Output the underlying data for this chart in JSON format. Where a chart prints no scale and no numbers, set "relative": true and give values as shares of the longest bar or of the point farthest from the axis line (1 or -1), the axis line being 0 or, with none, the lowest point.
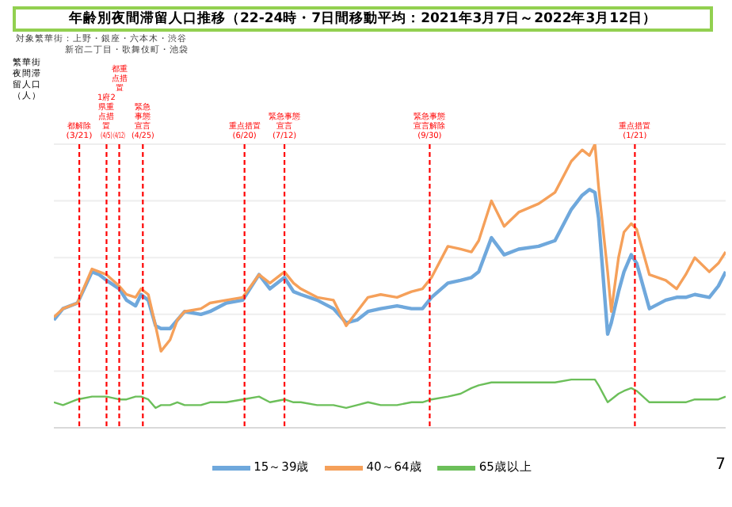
{
  "chart_data": {
    "type": "line",
    "title": "年齢別夜間滞留人口推移（22-24時・7日間移動平均：2021年3月7日～2022年3月12日）",
    "ylabel": "繁華街夜間滞留人口（人）",
    "annotations": [
      "対象繁華街：上野・銀座・六本木・渋谷",
      "新宿二丁目・歌舞伎町・池袋",
      "7"
    ],
    "relative": true,
    "grid": "y",
    "legend": "bottom",
    "marker": "none",
    "line_style": "solid",
    "xlim": [
      "2021-03-07",
      "2022-03-12"
    ],
    "xticks": [
      {
        "value": "2021-03-21",
        "label": "(3/21)"
      },
      {
        "value": "2021-04-05",
        "label": "(4/5)"
      },
      {
        "value": "2021-04-12",
        "label": "(4/12)"
      },
      {
        "value": "2021-04-25",
        "label": "(4/25)"
      },
      {
        "value": "2021-06-20",
        "label": "(6/20)"
      },
      {
        "value": "2021-07-12",
        "label": "(7/12)"
      },
      {
        "value": "2021-09-30",
        "label": "(9/30)"
      },
      {
        "value": "2022-01-21",
        "label": "(1/21)"
      }
    ],
    "x": [
      "2021-03-07",
      "2021-03-12",
      "2021-03-20",
      "2021-03-28",
      "2021-04-01",
      "2021-04-05",
      "2021-04-12",
      "2021-04-16",
      "2021-04-21",
      "2021-04-24",
      "2021-04-28",
      "2021-05-02",
      "2021-05-05",
      "2021-05-10",
      "2021-05-14",
      "2021-05-18",
      "2021-05-27",
      "2021-06-01",
      "2021-06-10",
      "2021-06-19",
      "2021-06-28",
      "2021-07-04",
      "2021-07-12",
      "2021-07-17",
      "2021-07-21",
      "2021-07-30",
      "2021-08-08",
      "2021-08-15",
      "2021-08-21",
      "2021-08-27",
      "2021-09-03",
      "2021-09-12",
      "2021-09-20",
      "2021-09-26",
      "2021-10-01",
      "2021-10-10",
      "2021-10-17",
      "2021-10-23",
      "2021-10-27",
      "2021-11-03",
      "2021-11-10",
      "2021-11-18",
      "2021-11-29",
      "2021-12-08",
      "2021-12-17",
      "2021-12-23",
      "2021-12-27",
      "2021-12-30",
      "2022-01-01",
      "2022-01-06",
      "2022-01-08",
      "2022-01-12",
      "2022-01-15",
      "2022-01-19",
      "2022-01-22",
      "2022-01-29",
      "2022-02-07",
      "2022-02-13",
      "2022-02-18",
      "2022-02-23",
      "2022-03-03",
      "2022-03-08",
      "2022-03-12"
    ],
    "series": [
      {
        "name": "15～39歳",
        "color": "#6fa8dc",
        "values": [
          0.38,
          0.42,
          0.44,
          0.55,
          0.54,
          0.52,
          0.49,
          0.45,
          0.43,
          0.47,
          0.45,
          0.36,
          0.35,
          0.35,
          0.38,
          0.41,
          0.4,
          0.41,
          0.44,
          0.45,
          0.54,
          0.49,
          0.53,
          0.48,
          0.47,
          0.45,
          0.42,
          0.37,
          0.38,
          0.41,
          0.42,
          0.43,
          0.42,
          0.42,
          0.46,
          0.51,
          0.52,
          0.53,
          0.55,
          0.67,
          0.61,
          0.63,
          0.64,
          0.66,
          0.77,
          0.82,
          0.84,
          0.83,
          0.74,
          0.33,
          0.37,
          0.48,
          0.55,
          0.61,
          0.58,
          0.42,
          0.45,
          0.46,
          0.46,
          0.47,
          0.46,
          0.5,
          0.55
        ]
      },
      {
        "name": "40～64歳",
        "color": "#f5a05a",
        "values": [
          0.39,
          0.42,
          0.44,
          0.56,
          0.55,
          0.54,
          0.5,
          0.47,
          0.46,
          0.49,
          0.47,
          0.36,
          0.27,
          0.31,
          0.38,
          0.41,
          0.42,
          0.44,
          0.45,
          0.46,
          0.54,
          0.51,
          0.55,
          0.51,
          0.49,
          0.46,
          0.45,
          0.36,
          0.41,
          0.46,
          0.47,
          0.46,
          0.48,
          0.49,
          0.53,
          0.64,
          0.63,
          0.62,
          0.66,
          0.8,
          0.71,
          0.76,
          0.79,
          0.83,
          0.94,
          0.98,
          0.96,
          1,
          0.85,
          0.55,
          0.41,
          0.6,
          0.69,
          0.72,
          0.7,
          0.54,
          0.52,
          0.49,
          0.54,
          0.6,
          0.55,
          0.58,
          0.62
        ]
      },
      {
        "name": "65歳以上",
        "color": "#6cbf5a",
        "values": [
          0.09,
          0.08,
          0.1,
          0.11,
          0.11,
          0.11,
          0.1,
          0.1,
          0.11,
          0.11,
          0.1,
          0.07,
          0.08,
          0.08,
          0.09,
          0.08,
          0.08,
          0.09,
          0.09,
          0.1,
          0.11,
          0.09,
          0.1,
          0.09,
          0.09,
          0.08,
          0.08,
          0.07,
          0.08,
          0.09,
          0.08,
          0.08,
          0.09,
          0.09,
          0.1,
          0.11,
          0.12,
          0.14,
          0.15,
          0.16,
          0.16,
          0.16,
          0.16,
          0.16,
          0.17,
          0.17,
          0.17,
          0.17,
          0.15,
          0.09,
          0.1,
          0.12,
          0.13,
          0.14,
          0.13,
          0.09,
          0.09,
          0.09,
          0.09,
          0.1,
          0.1,
          0.1,
          0.11
        ]
      }
    ],
    "ref_lines": [
      {
        "axis": "x",
        "value": "2021-03-21",
        "label": "都解除",
        "color": "#ff0000",
        "line_style": "dashed"
      },
      {
        "axis": "x",
        "value": "2021-04-05",
        "label": "1府2県重点措置",
        "color": "#ff0000",
        "line_style": "dashed"
      },
      {
        "axis": "x",
        "value": "2021-04-12",
        "label": "都重点措置",
        "color": "#ff0000",
        "line_style": "dashed"
      },
      {
        "axis": "x",
        "value": "2021-04-25",
        "label": "緊急事態宣言",
        "color": "#ff0000",
        "line_style": "dashed"
      },
      {
        "axis": "x",
        "value": "2021-06-20",
        "label": "重点措置",
        "color": "#ff0000",
        "line_style": "dashed"
      },
      {
        "axis": "x",
        "value": "2021-07-12",
        "label": "緊急事態宣言",
        "color": "#ff0000",
        "line_style": "dashed"
      },
      {
        "axis": "x",
        "value": "2021-09-30",
        "label": "緊急事態宣言解除",
        "color": "#ff0000",
        "line_style": "dashed"
      },
      {
        "axis": "x",
        "value": "2022-01-21",
        "label": "重点措置",
        "color": "#ff0000",
        "line_style": "dashed"
      }
    ]
  }
}
